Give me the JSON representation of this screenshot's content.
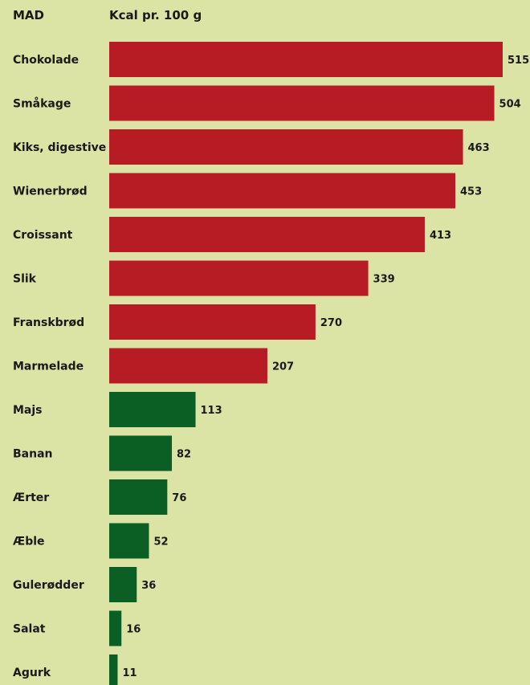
{
  "headers": {
    "category": "MAD",
    "value": "Kcal pr. 100 g"
  },
  "colors": {
    "background": "#dbe3a5",
    "high": "#b71c24",
    "low": "#0b5f24"
  },
  "chart_data": {
    "type": "bar",
    "orientation": "horizontal",
    "xlabel": "Kcal pr. 100 g",
    "ylabel": "MAD",
    "xlim": [
      0,
      515
    ],
    "grid": false,
    "categories": [
      "Chokolade",
      "Småkage",
      "Kiks, digestive",
      "Wienerbrød",
      "Croissant",
      "Slik",
      "Franskbrød",
      "Marmelade",
      "Majs",
      "Banan",
      "Ærter",
      "Æble",
      "Gulerødder",
      "Salat",
      "Agurk"
    ],
    "values": [
      515,
      504,
      463,
      453,
      413,
      339,
      270,
      207,
      113,
      82,
      76,
      52,
      36,
      16,
      11
    ],
    "bar_colors": [
      "#b71c24",
      "#b71c24",
      "#b71c24",
      "#b71c24",
      "#b71c24",
      "#b71c24",
      "#b71c24",
      "#b71c24",
      "#0b5f24",
      "#0b5f24",
      "#0b5f24",
      "#0b5f24",
      "#0b5f24",
      "#0b5f24",
      "#0b5f24"
    ]
  }
}
